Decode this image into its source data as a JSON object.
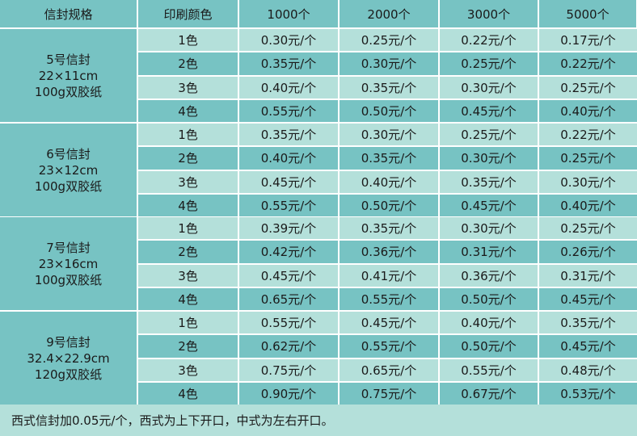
{
  "table": {
    "headers": [
      "信封规格",
      "印刷颜色",
      "1000个",
      "2000个",
      "3000个",
      "5000个"
    ],
    "groups": [
      {
        "spec": [
          "5号信封",
          "22×11cm",
          "100g双胶纸"
        ],
        "rows": [
          {
            "color": "1色",
            "prices": [
              "0.30元/个",
              "0.25元/个",
              "0.22元/个",
              "0.17元/个"
            ]
          },
          {
            "color": "2色",
            "prices": [
              "0.35元/个",
              "0.30元/个",
              "0.25元/个",
              "0.22元/个"
            ]
          },
          {
            "color": "3色",
            "prices": [
              "0.40元/个",
              "0.35元/个",
              "0.30元/个",
              "0.25元/个"
            ]
          },
          {
            "color": "4色",
            "prices": [
              "0.55元/个",
              "0.50元/个",
              "0.45元/个",
              "0.40元/个"
            ]
          }
        ]
      },
      {
        "spec": [
          "6号信封",
          "23×12cm",
          "100g双胶纸"
        ],
        "rows": [
          {
            "color": "1色",
            "prices": [
              "0.35元/个",
              "0.30元/个",
              "0.25元/个",
              "0.22元/个"
            ]
          },
          {
            "color": "2色",
            "prices": [
              "0.40元/个",
              "0.35元/个",
              "0.30元/个",
              "0.25元/个"
            ]
          },
          {
            "color": "3色",
            "prices": [
              "0.45元/个",
              "0.40元/个",
              "0.35元/个",
              "0.30元/个"
            ]
          },
          {
            "color": "4色",
            "prices": [
              "0.55元/个",
              "0.50元/个",
              "0.45元/个",
              "0.40元/个"
            ]
          }
        ]
      },
      {
        "spec": [
          "7号信封",
          "23×16cm",
          "100g双胶纸"
        ],
        "rows": [
          {
            "color": "1色",
            "prices": [
              "0.39元/个",
              "0.35元/个",
              "0.30元/个",
              "0.25元/个"
            ]
          },
          {
            "color": "2色",
            "prices": [
              "0.42元/个",
              "0.36元/个",
              "0.31元/个",
              "0.26元/个"
            ]
          },
          {
            "color": "3色",
            "prices": [
              "0.45元/个",
              "0.41元/个",
              "0.36元/个",
              "0.31元/个"
            ]
          },
          {
            "color": "4色",
            "prices": [
              "0.65元/个",
              "0.55元/个",
              "0.50元/个",
              "0.45元/个"
            ]
          }
        ]
      },
      {
        "spec": [
          "9号信封",
          "32.4×22.9cm",
          "120g双胶纸"
        ],
        "rows": [
          {
            "color": "1色",
            "prices": [
              "0.55元/个",
              "0.45元/个",
              "0.40元/个",
              "0.35元/个"
            ]
          },
          {
            "color": "2色",
            "prices": [
              "0.62元/个",
              "0.55元/个",
              "0.50元/个",
              "0.45元/个"
            ]
          },
          {
            "color": "3色",
            "prices": [
              "0.75元/个",
              "0.65元/个",
              "0.55元/个",
              "0.48元/个"
            ]
          },
          {
            "color": "4色",
            "prices": [
              "0.90元/个",
              "0.75元/个",
              "0.67元/个",
              "0.53元/个"
            ]
          }
        ]
      }
    ],
    "note": "西式信封加0.05元/个，西式为上下开口，中式为左右开口。"
  }
}
